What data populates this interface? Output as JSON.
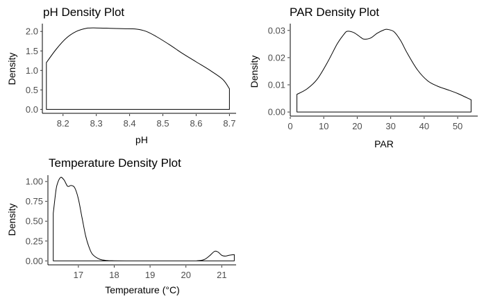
{
  "colors": {
    "background": "#ffffff",
    "line": "#000000",
    "tick_text": "#4d4d4d"
  },
  "chart_data": [
    {
      "id": "ph",
      "type": "area",
      "title": "pH Density Plot",
      "xlabel": "pH",
      "ylabel": "Density",
      "xlim": [
        8.14,
        8.72
      ],
      "ylim": [
        -0.1,
        2.2
      ],
      "xticks": [
        8.2,
        8.3,
        8.4,
        8.5,
        8.6,
        8.7
      ],
      "xtick_labels": [
        "8.2",
        "8.3",
        "8.4",
        "8.5",
        "8.6",
        "8.7"
      ],
      "yticks": [
        0.0,
        0.5,
        1.0,
        1.5,
        2.0
      ],
      "ytick_labels": [
        "0.0",
        "0.5",
        "1.0",
        "1.5",
        "2.0"
      ],
      "grid": false,
      "x": [
        8.15,
        8.18,
        8.21,
        8.24,
        8.27,
        8.3,
        8.34,
        8.38,
        8.42,
        8.45,
        8.48,
        8.52,
        8.56,
        8.6,
        8.64,
        8.68,
        8.7
      ],
      "y": [
        1.2,
        1.55,
        1.83,
        2.0,
        2.08,
        2.09,
        2.08,
        2.07,
        2.06,
        2.0,
        1.87,
        1.66,
        1.43,
        1.22,
        1.01,
        0.77,
        0.53
      ]
    },
    {
      "id": "par",
      "type": "area",
      "title": "PAR Density Plot",
      "xlabel": "PAR",
      "ylabel": "Density",
      "xlim": [
        0,
        56
      ],
      "ylim": [
        -0.0015,
        0.0325
      ],
      "xticks": [
        0,
        10,
        20,
        30,
        40,
        50
      ],
      "xtick_labels": [
        "0",
        "10",
        "20",
        "30",
        "40",
        "50"
      ],
      "yticks": [
        0.0,
        0.01,
        0.02,
        0.03
      ],
      "ytick_labels": [
        "0.00",
        "0.01",
        "0.02",
        "0.03"
      ],
      "grid": false,
      "x": [
        2,
        5,
        8,
        11,
        14,
        16,
        17,
        19,
        21,
        22,
        24,
        26,
        28,
        29,
        31,
        33,
        35,
        38,
        41,
        44,
        47,
        50,
        54
      ],
      "y": [
        0.0065,
        0.0085,
        0.012,
        0.018,
        0.025,
        0.0285,
        0.0297,
        0.0292,
        0.0275,
        0.0268,
        0.0272,
        0.029,
        0.0302,
        0.0304,
        0.0295,
        0.0262,
        0.0215,
        0.0155,
        0.0115,
        0.0095,
        0.0082,
        0.0068,
        0.0045
      ]
    },
    {
      "id": "temperature",
      "type": "area",
      "title": "Temperature Density Plot",
      "xlabel": "Temperature (°C)",
      "ylabel": "Density",
      "xlim": [
        16.15,
        21.4
      ],
      "ylim": [
        -0.05,
        1.08
      ],
      "xticks": [
        17,
        18,
        19,
        20,
        21
      ],
      "xtick_labels": [
        "17",
        "18",
        "19",
        "20",
        "21"
      ],
      "yticks": [
        0.0,
        0.25,
        0.5,
        0.75,
        1.0
      ],
      "ytick_labels": [
        "0.00",
        "0.25",
        "0.50",
        "0.75",
        "1.00"
      ],
      "grid": false,
      "x": [
        16.3,
        16.35,
        16.4,
        16.5,
        16.6,
        16.7,
        16.8,
        16.9,
        17.0,
        17.1,
        17.2,
        17.3,
        17.4,
        17.6,
        17.8,
        18.0,
        18.5,
        19.0,
        19.5,
        20.0,
        20.3,
        20.5,
        20.65,
        20.8,
        20.9,
        21.0,
        21.1,
        21.2,
        21.35
      ],
      "y": [
        0.6,
        0.8,
        0.95,
        1.05,
        1.02,
        0.94,
        0.95,
        0.92,
        0.78,
        0.55,
        0.32,
        0.17,
        0.08,
        0.02,
        0.005,
        0.002,
        0.0,
        0.0,
        0.0,
        0.0,
        0.002,
        0.015,
        0.06,
        0.12,
        0.11,
        0.07,
        0.06,
        0.07,
        0.08
      ]
    }
  ]
}
